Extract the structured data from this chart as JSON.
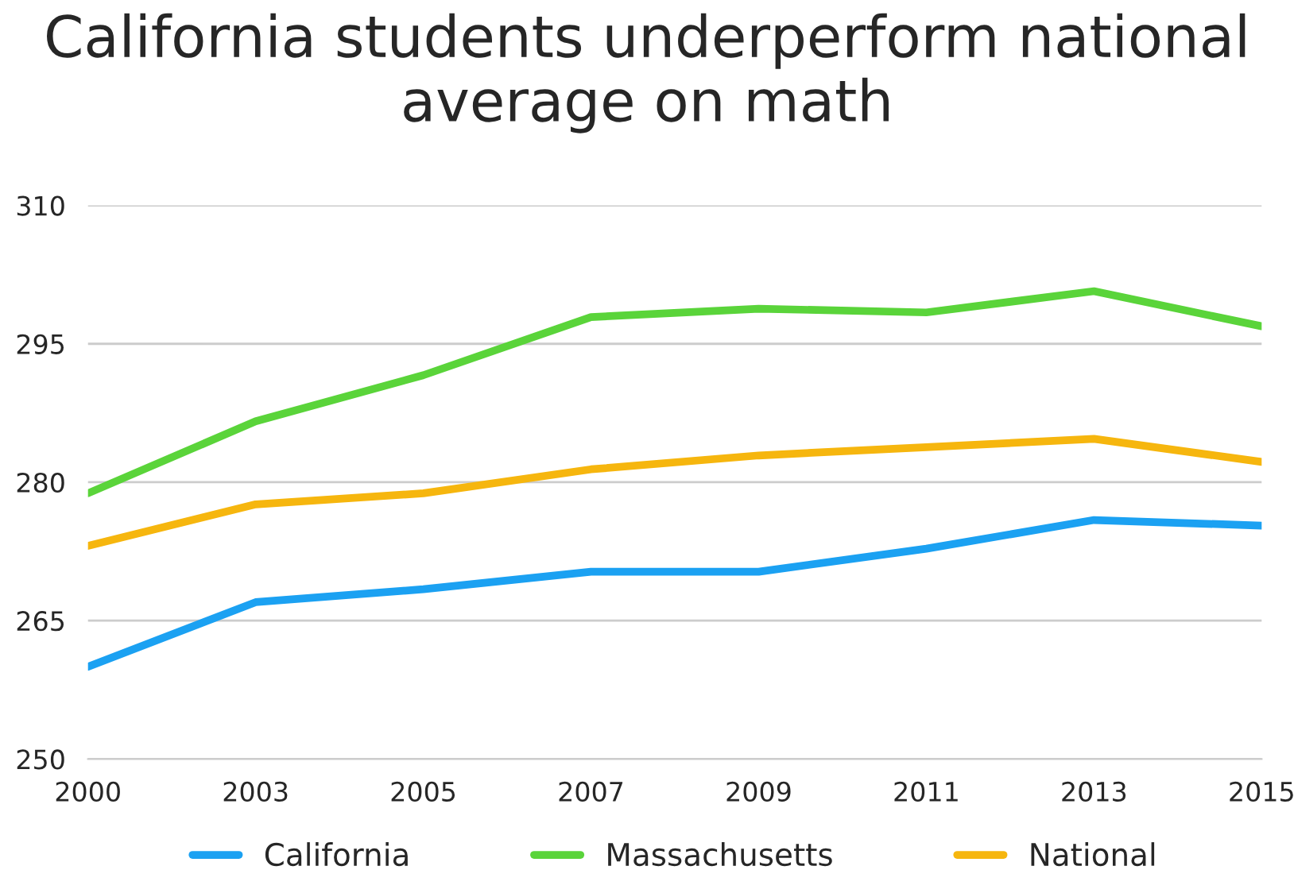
{
  "chart_data": {
    "type": "line",
    "title": "California students underperform national average on math",
    "categories": [
      "2000",
      "2003",
      "2005",
      "2007",
      "2009",
      "2011",
      "2013",
      "2015"
    ],
    "series": [
      {
        "name": "California",
        "color": "#1ba1f2",
        "values": [
          260,
          267,
          268.4,
          270.3,
          270.3,
          272.8,
          275.9,
          275.3
        ]
      },
      {
        "name": "Massachusetts",
        "color": "#5ad43a",
        "values": [
          278.8,
          286.6,
          291.6,
          297.9,
          298.8,
          298.4,
          300.7,
          296.9
        ]
      },
      {
        "name": "National",
        "color": "#f6b60e",
        "values": [
          273.1,
          277.6,
          278.8,
          281.4,
          282.9,
          283.8,
          284.7,
          282.2
        ]
      }
    ],
    "ylim": [
      250,
      310
    ],
    "yticks": [
      250,
      265,
      280,
      295,
      310
    ],
    "grid": "y",
    "legend": "bottom",
    "marker": "none",
    "line_style": "solid"
  }
}
